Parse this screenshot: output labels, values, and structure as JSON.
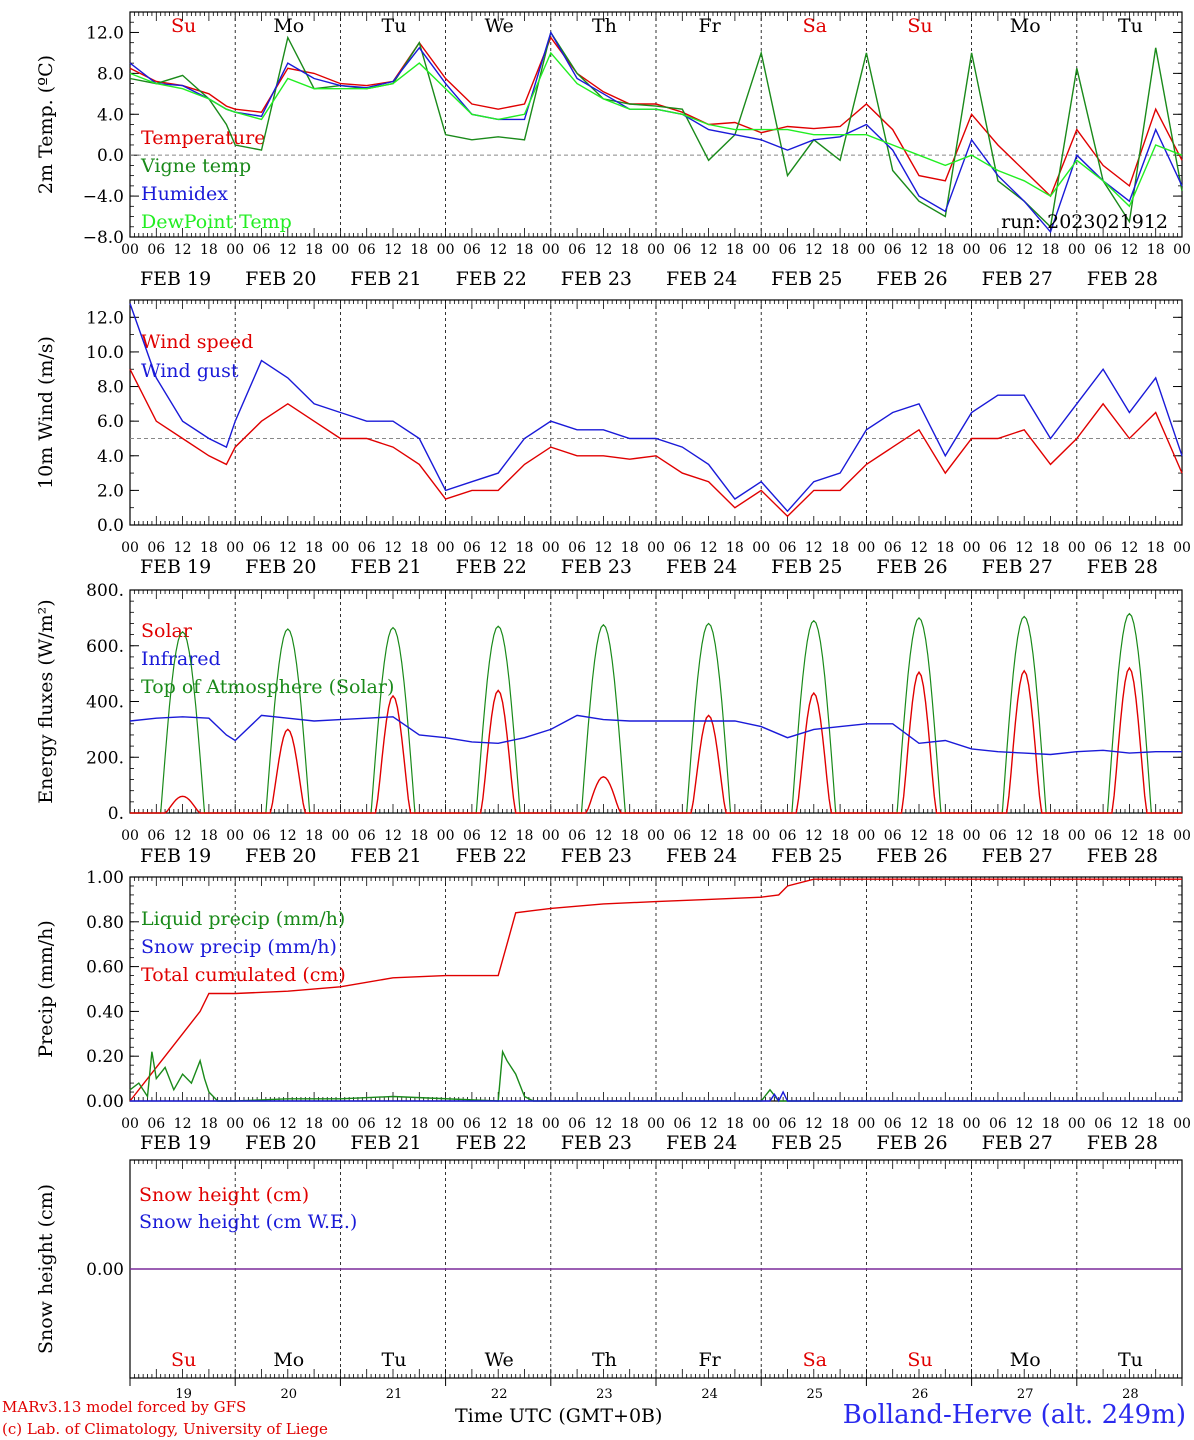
{
  "day_labels": [
    "Su",
    "Mo",
    "Tu",
    "We",
    "Th",
    "Fr",
    "Sa",
    "Su",
    "Mo",
    "Tu"
  ],
  "weekend_flags": [
    true,
    false,
    false,
    false,
    false,
    false,
    true,
    true,
    false,
    false
  ],
  "date_labels": [
    "FEB 19",
    "FEB 20",
    "FEB 21",
    "FEB 22",
    "FEB 23",
    "FEB 24",
    "FEB 25",
    "FEB 26",
    "FEB 27",
    "FEB 28"
  ],
  "day_numbers": [
    "19",
    "20",
    "21",
    "22",
    "23",
    "24",
    "25",
    "26",
    "27",
    "28"
  ],
  "hour_ticks": [
    "00",
    "06",
    "12",
    "18"
  ],
  "final_hour_tick": "00",
  "x_axis_title": "Time UTC (GMT+0B)",
  "x_axis_overlay": "FEB",
  "run_label": "run: 2023021912",
  "footer": {
    "model": "MARv3.13 model forced by GFS",
    "credit": "(c) Lab. of Climatology, University of Liege",
    "station": "Bolland-Herve (alt. 249m)"
  },
  "colors": {
    "red": "#e00000",
    "green": "#1a8a1a",
    "blue": "#1a1ad8",
    "lightgreen": "#22ee22",
    "purple": "#7a2a9a",
    "weekend": "#e00000",
    "weekday": "#000000"
  },
  "chart_data": [
    {
      "type": "line",
      "ylabel": "2m Temp. (ºC)",
      "ylim": [
        -8,
        14
      ],
      "ytick_labels": [
        "12.0",
        "8.0",
        "4.0",
        "0.0",
        "−4.0",
        "−8.0"
      ],
      "ytick_values": [
        12,
        8,
        4,
        0,
        -4,
        -8
      ],
      "x_unit": "hours since FEB 19 00 UTC",
      "reference_line": 0,
      "legend": [
        "Temperature",
        "Vigne temp",
        "Humidex",
        "DewPoint Temp"
      ],
      "series": [
        {
          "name": "Temperature",
          "color": "red",
          "x": [
            0,
            6,
            12,
            18,
            22,
            24,
            30,
            36,
            42,
            48,
            54,
            60,
            66,
            72,
            78,
            84,
            90,
            96,
            102,
            108,
            114,
            120,
            126,
            132,
            138,
            144,
            150,
            156,
            162,
            168,
            174,
            180,
            186,
            192,
            198,
            204,
            210,
            216,
            222,
            228,
            234,
            240
          ],
          "y": [
            8.5,
            7.2,
            6.8,
            6.0,
            4.8,
            4.5,
            4.2,
            8.5,
            8.0,
            7.0,
            6.8,
            7.2,
            11.0,
            7.5,
            5.0,
            4.5,
            5.0,
            11.5,
            8.0,
            6.2,
            5.0,
            5.0,
            4.2,
            3.0,
            3.2,
            2.2,
            2.8,
            2.6,
            2.8,
            5.0,
            2.5,
            -2.0,
            -2.5,
            4.0,
            1.0,
            -1.5,
            -4.0,
            2.5,
            -1.0,
            -3.0,
            4.5,
            -0.5
          ]
        },
        {
          "name": "Vigne temp",
          "color": "green",
          "x": [
            0,
            6,
            12,
            18,
            22,
            24,
            30,
            36,
            42,
            48,
            54,
            60,
            66,
            72,
            78,
            84,
            90,
            96,
            102,
            108,
            114,
            120,
            126,
            132,
            138,
            144,
            150,
            156,
            162,
            168,
            174,
            180,
            186,
            192,
            198,
            204,
            210,
            216,
            222,
            228,
            234,
            240
          ],
          "y": [
            7.5,
            7.0,
            7.8,
            5.5,
            3.0,
            1.0,
            0.5,
            11.5,
            6.5,
            6.8,
            6.5,
            7.0,
            11.0,
            2.0,
            1.5,
            1.8,
            1.5,
            12.0,
            8.0,
            5.5,
            5.0,
            4.8,
            4.5,
            -0.5,
            2.0,
            10.0,
            -2.0,
            1.5,
            -0.5,
            10.0,
            -1.5,
            -4.5,
            -6.0,
            10.0,
            -2.5,
            -4.5,
            -7.0,
            8.5,
            -2.5,
            -6.5,
            10.5,
            -3.5
          ]
        },
        {
          "name": "Humidex",
          "color": "blue",
          "x": [
            0,
            6,
            12,
            18,
            22,
            24,
            30,
            36,
            42,
            48,
            54,
            60,
            66,
            72,
            78,
            84,
            90,
            96,
            102,
            108,
            114,
            120,
            126,
            132,
            138,
            144,
            150,
            156,
            162,
            168,
            174,
            180,
            186,
            192,
            198,
            204,
            210,
            216,
            222,
            228,
            234,
            240
          ],
          "y": [
            9.0,
            7.0,
            6.8,
            5.5,
            4.5,
            4.2,
            3.8,
            9.0,
            7.5,
            6.8,
            6.6,
            7.2,
            10.5,
            7.0,
            4.0,
            3.5,
            3.5,
            12.0,
            7.5,
            6.0,
            4.5,
            4.5,
            4.0,
            2.5,
            2.0,
            1.5,
            0.5,
            1.5,
            1.8,
            3.0,
            0.5,
            -4.0,
            -5.5,
            1.5,
            -2.0,
            -4.5,
            -7.5,
            0.0,
            -2.5,
            -4.5,
            2.5,
            -3.0
          ]
        },
        {
          "name": "DewPoint Temp",
          "color": "lightgreen",
          "x": [
            0,
            6,
            12,
            18,
            22,
            24,
            30,
            36,
            42,
            48,
            54,
            60,
            66,
            72,
            78,
            84,
            90,
            96,
            102,
            108,
            114,
            120,
            126,
            132,
            138,
            144,
            150,
            156,
            162,
            168,
            174,
            180,
            186,
            192,
            198,
            204,
            210,
            216,
            222,
            228,
            234,
            240
          ],
          "y": [
            8.0,
            7.0,
            6.5,
            5.5,
            4.5,
            4.2,
            3.5,
            7.5,
            6.5,
            6.5,
            6.5,
            7.0,
            9.0,
            6.5,
            4.0,
            3.5,
            4.0,
            10.0,
            7.0,
            5.5,
            4.5,
            4.5,
            4.0,
            3.0,
            2.5,
            2.5,
            2.5,
            2.0,
            2.0,
            2.0,
            1.0,
            0.0,
            -1.0,
            0.0,
            -1.5,
            -2.5,
            -4.0,
            -0.5,
            -2.5,
            -5.0,
            1.0,
            0.0
          ]
        }
      ]
    },
    {
      "type": "line",
      "ylabel": "10m Wind (m/s)",
      "ylim": [
        0,
        13
      ],
      "ytick_labels": [
        "12.0",
        "10.0",
        "8.0",
        "6.0",
        "4.0",
        "2.0",
        "0.0"
      ],
      "ytick_values": [
        12,
        10,
        8,
        6,
        4,
        2,
        0
      ],
      "reference_line": 5,
      "legend": [
        "Wind speed",
        "Wind gust"
      ],
      "series": [
        {
          "name": "Wind speed",
          "color": "red",
          "x": [
            0,
            6,
            12,
            18,
            22,
            24,
            30,
            36,
            42,
            48,
            54,
            60,
            66,
            72,
            78,
            84,
            90,
            96,
            102,
            108,
            114,
            120,
            126,
            132,
            138,
            144,
            150,
            156,
            162,
            168,
            174,
            180,
            186,
            192,
            198,
            204,
            210,
            216,
            222,
            228,
            234,
            240
          ],
          "y": [
            9.0,
            6.0,
            5.0,
            4.0,
            3.5,
            4.5,
            6.0,
            7.0,
            6.0,
            5.0,
            5.0,
            4.5,
            3.5,
            1.5,
            2.0,
            2.0,
            3.5,
            4.5,
            4.0,
            4.0,
            3.8,
            4.0,
            3.0,
            2.5,
            1.0,
            2.0,
            0.5,
            2.0,
            2.0,
            3.5,
            4.5,
            5.5,
            3.0,
            5.0,
            5.0,
            5.5,
            3.5,
            5.0,
            7.0,
            5.0,
            6.5,
            3.0
          ]
        },
        {
          "name": "Wind gust",
          "color": "blue",
          "x": [
            0,
            6,
            12,
            18,
            22,
            24,
            30,
            36,
            42,
            48,
            54,
            60,
            66,
            72,
            78,
            84,
            90,
            96,
            102,
            108,
            114,
            120,
            126,
            132,
            138,
            144,
            150,
            156,
            162,
            168,
            174,
            180,
            186,
            192,
            198,
            204,
            210,
            216,
            222,
            228,
            234,
            240
          ],
          "y": [
            12.8,
            8.5,
            6.0,
            5.0,
            4.5,
            6.0,
            9.5,
            8.5,
            7.0,
            6.5,
            6.0,
            6.0,
            5.0,
            2.0,
            2.5,
            3.0,
            5.0,
            6.0,
            5.5,
            5.5,
            5.0,
            5.0,
            4.5,
            3.5,
            1.5,
            2.5,
            0.8,
            2.5,
            3.0,
            5.5,
            6.5,
            7.0,
            4.0,
            6.5,
            7.5,
            7.5,
            5.0,
            7.0,
            9.0,
            6.5,
            8.5,
            4.0
          ]
        }
      ]
    },
    {
      "type": "line",
      "ylabel": "Energy fluxes (W/m²)",
      "ylim": [
        0,
        800
      ],
      "ytick_labels": [
        "800.",
        "600.",
        "400.",
        "200.",
        "0."
      ],
      "ytick_values": [
        800,
        600,
        400,
        200,
        0
      ],
      "legend": [
        "Solar",
        "Infrared",
        "Top of Atmosphere (Solar)"
      ],
      "toa_daily_peaks": [
        650,
        660,
        665,
        670,
        675,
        680,
        690,
        700,
        705,
        715
      ],
      "solar_daily_peaks": [
        60,
        300,
        420,
        440,
        130,
        350,
        430,
        505,
        510,
        520
      ],
      "infrared": {
        "name": "Infrared",
        "color": "blue",
        "x": [
          0,
          6,
          12,
          18,
          22,
          24,
          30,
          36,
          42,
          48,
          54,
          60,
          66,
          72,
          78,
          84,
          90,
          96,
          102,
          108,
          114,
          120,
          126,
          132,
          138,
          144,
          150,
          156,
          162,
          168,
          174,
          180,
          186,
          192,
          198,
          204,
          210,
          216,
          222,
          228,
          234,
          240
        ],
        "y": [
          330,
          340,
          345,
          340,
          280,
          260,
          350,
          340,
          330,
          335,
          340,
          345,
          280,
          270,
          255,
          250,
          270,
          300,
          350,
          335,
          330,
          330,
          330,
          330,
          330,
          310,
          270,
          300,
          310,
          320,
          320,
          250,
          260,
          230,
          220,
          215,
          210,
          220,
          225,
          215,
          220,
          220
        ]
      }
    },
    {
      "type": "line",
      "ylabel": "Precip (mm/h)",
      "ylim": [
        0,
        1.0
      ],
      "ytick_labels": [
        "1.00",
        "0.80",
        "0.60",
        "0.40",
        "0.20",
        "0.00"
      ],
      "ytick_values": [
        1.0,
        0.8,
        0.6,
        0.4,
        0.2,
        0.0
      ],
      "legend": [
        "Liquid precip (mm/h)",
        "Snow precip (mm/h)",
        "Total cumulated (cm)"
      ],
      "series": [
        {
          "name": "Total cumulated (cm)",
          "color": "red",
          "x": [
            0,
            6,
            12,
            16,
            18,
            24,
            36,
            48,
            60,
            72,
            84,
            86,
            88,
            92,
            96,
            108,
            120,
            132,
            144,
            148,
            150,
            156,
            240
          ],
          "y": [
            0.0,
            0.15,
            0.3,
            0.4,
            0.48,
            0.48,
            0.49,
            0.51,
            0.55,
            0.56,
            0.56,
            0.7,
            0.84,
            0.85,
            0.86,
            0.88,
            0.89,
            0.9,
            0.91,
            0.92,
            0.96,
            0.99,
            0.99
          ]
        },
        {
          "name": "Liquid precip (mm/h)",
          "color": "green",
          "x": [
            0,
            2,
            4,
            5,
            6,
            8,
            10,
            12,
            14,
            16,
            17,
            18,
            20,
            22,
            24,
            36,
            48,
            60,
            84,
            85,
            86,
            88,
            90,
            92,
            144,
            146,
            148,
            240
          ],
          "y": [
            0.05,
            0.08,
            0.02,
            0.22,
            0.1,
            0.15,
            0.05,
            0.12,
            0.08,
            0.18,
            0.1,
            0.04,
            0.0,
            0.0,
            0.0,
            0.01,
            0.01,
            0.02,
            0.0,
            0.22,
            0.18,
            0.12,
            0.02,
            0.0,
            0.0,
            0.05,
            0.0,
            0.0
          ]
        },
        {
          "name": "Snow precip (mm/h)",
          "color": "blue",
          "x": [
            0,
            146,
            147,
            148,
            149,
            150,
            240
          ],
          "y": [
            0.0,
            0.0,
            0.03,
            0.0,
            0.04,
            0.0,
            0.0
          ]
        }
      ]
    },
    {
      "type": "line",
      "ylabel": "Snow height (cm)",
      "ylim": [
        -1,
        1
      ],
      "ytick_labels": [
        "0.00"
      ],
      "ytick_values": [
        0
      ],
      "legend": [
        "Snow height (cm)",
        "Snow height (cm W.E.)"
      ],
      "series": [
        {
          "name": "Snow height (cm)",
          "color": "red",
          "x": [
            0,
            240
          ],
          "y": [
            0,
            0
          ]
        },
        {
          "name": "Snow height (cm W.E.)",
          "color": "blue",
          "x": [
            0,
            240
          ],
          "y": [
            0,
            0
          ]
        }
      ]
    }
  ]
}
